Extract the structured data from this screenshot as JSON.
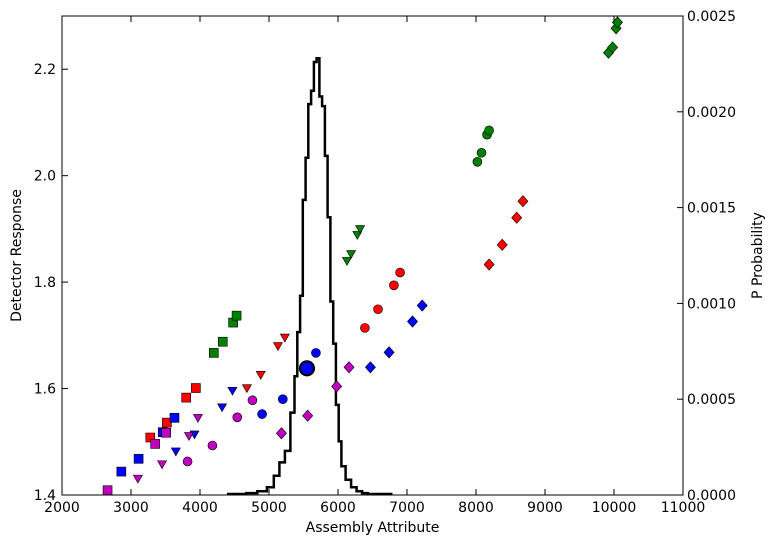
{
  "chart_data": {
    "type": "scatter",
    "xlabel": "Assembly Attribute",
    "ylabel": "Detector Response",
    "y2label": "P Probability",
    "xlim": [
      2000,
      11000
    ],
    "ylim": [
      1.4,
      2.3
    ],
    "y2lim": [
      0,
      0.0025
    ],
    "xticks": [
      "2000",
      "3000",
      "4000",
      "5000",
      "6000",
      "7000",
      "8000",
      "9000",
      "10000",
      "11000"
    ],
    "yticks": [
      "1.4",
      "1.6",
      "1.8",
      "2.0",
      "2.2"
    ],
    "y2ticks": [
      "0.0000",
      "0.0005",
      "0.0010",
      "0.0015",
      "0.0020",
      "0.0025"
    ],
    "grid": false,
    "legend": "none",
    "series": [
      {
        "marker": "square",
        "color": "#008000",
        "points": [
          [
            4200,
            1.667
          ],
          [
            4330,
            1.688
          ],
          [
            4480,
            1.724
          ],
          [
            4530,
            1.737
          ]
        ]
      },
      {
        "marker": "square",
        "color": "#ff0000",
        "points": [
          [
            3280,
            1.508
          ],
          [
            3520,
            1.536
          ],
          [
            3800,
            1.583
          ],
          [
            3940,
            1.601
          ]
        ]
      },
      {
        "marker": "square",
        "color": "#0000ff",
        "points": [
          [
            2860,
            1.444
          ],
          [
            3110,
            1.468
          ],
          [
            3460,
            1.518
          ],
          [
            3630,
            1.545
          ]
        ]
      },
      {
        "marker": "square",
        "color": "#bf00bf",
        "points": [
          [
            2660,
            1.409
          ],
          [
            3350,
            1.496
          ],
          [
            3510,
            1.517
          ]
        ]
      },
      {
        "marker": "triangle-down",
        "color": "#008000",
        "points": [
          [
            6130,
            1.84
          ],
          [
            6190,
            1.853
          ],
          [
            6280,
            1.889
          ],
          [
            6320,
            1.9
          ]
        ]
      },
      {
        "marker": "triangle-down",
        "color": "#ff0000",
        "points": [
          [
            4680,
            1.601
          ],
          [
            4880,
            1.626
          ],
          [
            5130,
            1.68
          ],
          [
            5230,
            1.696
          ]
        ]
      },
      {
        "marker": "triangle-down",
        "color": "#0000ff",
        "points": [
          [
            3650,
            1.482
          ],
          [
            3920,
            1.514
          ],
          [
            4320,
            1.565
          ],
          [
            4470,
            1.596
          ]
        ]
      },
      {
        "marker": "triangle-down",
        "color": "#bf00bf",
        "points": [
          [
            3100,
            1.431
          ],
          [
            3450,
            1.458
          ],
          [
            3840,
            1.511
          ],
          [
            3970,
            1.545
          ]
        ]
      },
      {
        "marker": "circle",
        "color": "#008000",
        "points": [
          [
            8020,
            2.026
          ],
          [
            8080,
            2.043
          ],
          [
            8160,
            2.077
          ],
          [
            8190,
            2.085
          ]
        ]
      },
      {
        "marker": "circle",
        "color": "#ff0000",
        "points": [
          [
            6390,
            1.714
          ],
          [
            6580,
            1.749
          ],
          [
            6810,
            1.794
          ],
          [
            6900,
            1.818
          ]
        ]
      },
      {
        "marker": "circle",
        "color": "#0000ff",
        "points": [
          [
            4900,
            1.552
          ],
          [
            5200,
            1.58
          ],
          [
            5520,
            1.636
          ],
          [
            5680,
            1.667
          ]
        ]
      },
      {
        "marker": "circle",
        "color": "#bf00bf",
        "points": [
          [
            3820,
            1.463
          ],
          [
            4180,
            1.493
          ],
          [
            4540,
            1.546
          ],
          [
            4760,
            1.578
          ]
        ]
      },
      {
        "marker": "diamond",
        "color": "#008000",
        "points": [
          [
            9920,
            2.231
          ],
          [
            9980,
            2.241
          ],
          [
            10030,
            2.277
          ],
          [
            10050,
            2.288
          ]
        ]
      },
      {
        "marker": "diamond",
        "color": "#ff0000",
        "points": [
          [
            8190,
            1.833
          ],
          [
            8380,
            1.87
          ],
          [
            8590,
            1.921
          ],
          [
            8680,
            1.952
          ]
        ]
      },
      {
        "marker": "diamond",
        "color": "#0000ff",
        "points": [
          [
            6470,
            1.64
          ],
          [
            6740,
            1.668
          ],
          [
            7080,
            1.726
          ],
          [
            7220,
            1.756
          ]
        ]
      },
      {
        "marker": "diamond",
        "color": "#bf00bf",
        "points": [
          [
            5180,
            1.516
          ],
          [
            5560,
            1.549
          ],
          [
            5980,
            1.604
          ],
          [
            6160,
            1.64
          ]
        ]
      }
    ],
    "highlight": {
      "marker": "circle",
      "color": "#0000ff",
      "edge": "#000000",
      "point": [
        5550,
        1.638
      ]
    },
    "histogram": {
      "axis": "right",
      "color": "#000000",
      "x": [
        4430,
        4590,
        4750,
        4910,
        5030,
        5110,
        5190,
        5270,
        5350,
        5390,
        5430,
        5470,
        5510,
        5550,
        5590,
        5630,
        5670,
        5710,
        5750,
        5790,
        5830,
        5870,
        5910,
        5950,
        5990,
        6030,
        6070,
        6150,
        6230,
        6310,
        6390,
        6470,
        6550,
        6630,
        6750
      ],
      "p": [
        5e-06,
        5e-06,
        1e-05,
        2e-05,
        4e-05,
        0.0001,
        0.00017,
        0.00023,
        0.00043,
        0.00062,
        0.00085,
        0.00104,
        0.00154,
        0.00176,
        0.00204,
        0.00211,
        0.00226,
        0.00228,
        0.00208,
        0.00203,
        0.00177,
        0.00145,
        0.00101,
        0.00079,
        0.00047,
        0.00028,
        0.00015,
        8e-05,
        4e-05,
        2e-05,
        1e-05,
        5e-06,
        5e-06,
        5e-06,
        5e-06
      ]
    }
  }
}
